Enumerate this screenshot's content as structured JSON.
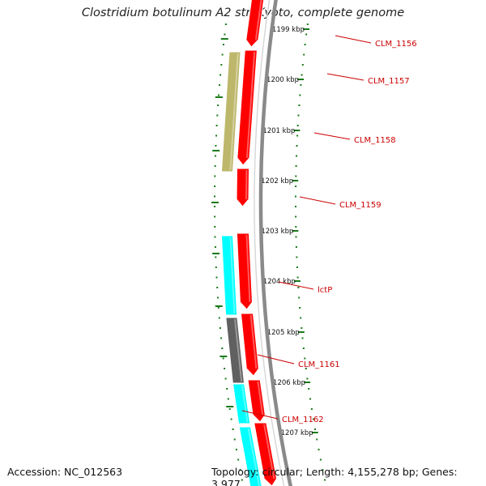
{
  "title": "Clostridium botulinum A2 str. Kyoto, complete genome",
  "footer": {
    "accession": "Accession: NC_012563",
    "topology": "Topology: circular; Length: 4,155,278 bp; Genes: 3,977"
  },
  "scale": {
    "labels": [
      "1199 kbp",
      "1200 kbp",
      "1201 kbp",
      "1202 kbp",
      "1203 kbp",
      "1204 kbp",
      "1205 kbp",
      "1206 kbp",
      "1207 kbp"
    ],
    "tick_color": "#1a7a1a"
  },
  "gene_labels": [
    "CLM_1156",
    "CLM_1157",
    "CLM_1158",
    "CLM_1159",
    "lctP",
    "CLM_1161",
    "CLM_1162"
  ],
  "colors": {
    "backbone": "#8a8a8a",
    "cds": "#ff0000",
    "cds_khaki": "#bdb76b",
    "cds_cyan": "#00ffff",
    "cds_gray": "#606060",
    "label": "#cc0000"
  }
}
